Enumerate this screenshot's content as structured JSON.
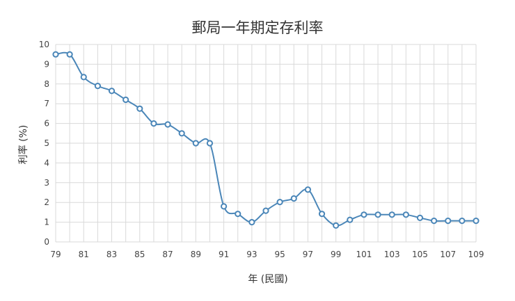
{
  "chart_data": {
    "type": "line",
    "title": "郵局一年期定存利率",
    "xlabel": "年 (民國)",
    "ylabel": "利率 (%)",
    "x": [
      79,
      80,
      81,
      82,
      83,
      84,
      85,
      86,
      87,
      88,
      89,
      90,
      91,
      92,
      93,
      94,
      95,
      96,
      97,
      98,
      99,
      100,
      101,
      102,
      103,
      104,
      105,
      106,
      107,
      108,
      109
    ],
    "values": [
      9.5,
      9.5,
      8.35,
      7.9,
      7.65,
      7.2,
      6.75,
      6.0,
      5.95,
      5.5,
      5.0,
      5.0,
      1.8,
      1.42,
      1.0,
      1.58,
      2.02,
      2.2,
      2.65,
      1.42,
      0.83,
      1.12,
      1.38,
      1.38,
      1.38,
      1.38,
      1.22,
      1.07,
      1.07,
      1.07,
      1.07
    ],
    "xticks": [
      79,
      81,
      83,
      85,
      87,
      89,
      91,
      93,
      95,
      97,
      99,
      101,
      103,
      105,
      107,
      109
    ],
    "yticks": [
      0,
      1,
      2,
      3,
      4,
      5,
      6,
      7,
      8,
      9,
      10
    ],
    "xlim": [
      79,
      109
    ],
    "ylim": [
      0,
      10
    ],
    "grid": true,
    "legend": "none",
    "line_color": "#4a86b8",
    "marker_fill": "#ffffff",
    "grid_color": "#d9d9d9"
  }
}
